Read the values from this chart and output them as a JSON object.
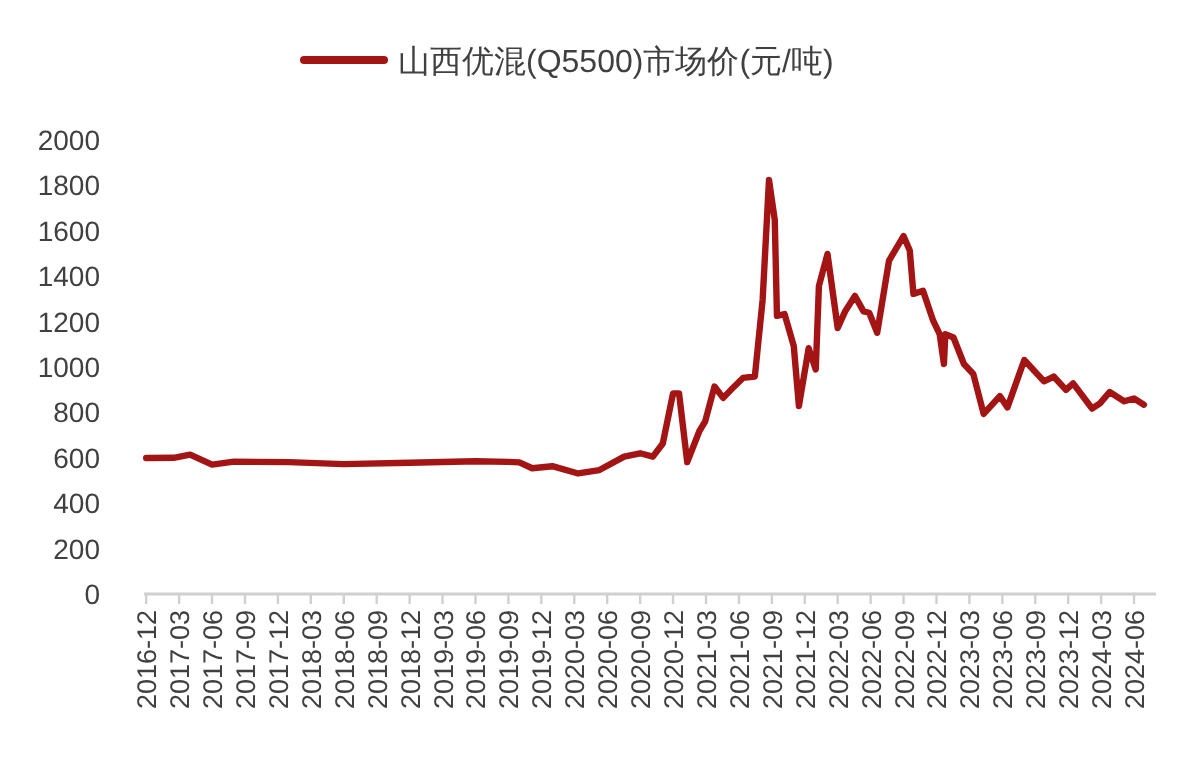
{
  "chart_data": {
    "type": "line",
    "legend": "top",
    "grid": false,
    "line_style": "solid",
    "marker": "none",
    "xlim": [
      "2016-11-25",
      "2024-08"
    ],
    "xticks": [
      "2016-12",
      "2017-03",
      "2017-06",
      "2017-09",
      "2017-12",
      "2018-03",
      "2018-06",
      "2018-09",
      "2018-12",
      "2019-03",
      "2019-06",
      "2019-09",
      "2019-12",
      "2020-03",
      "2020-06",
      "2020-09",
      "2020-12",
      "2021-03",
      "2021-06",
      "2021-09",
      "2021-12",
      "2022-03",
      "2022-06",
      "2022-09",
      "2022-12",
      "2023-03",
      "2023-06",
      "2023-09",
      "2023-12",
      "2024-03",
      "2024-06"
    ],
    "ylim": [
      0,
      2000
    ],
    "yticks": [
      0,
      200,
      400,
      600,
      800,
      1000,
      1200,
      1400,
      1600,
      1800,
      2000
    ],
    "x": [
      "2016-12-01",
      "2017-02-15",
      "2017-04-01",
      "2017-06-01",
      "2017-08-01",
      "2018-01-01",
      "2018-06-01",
      "2018-12-01",
      "2019-06-01",
      "2019-09-01",
      "2019-10-01",
      "2019-11-06",
      "2020-01-01",
      "2020-03-12",
      "2020-05-10",
      "2020-07-18",
      "2020-09-01",
      "2020-10-06",
      "2020-11-03",
      "2020-12-01",
      "2020-12-18",
      "2021-01-10",
      "2021-02-12",
      "2021-02-27",
      "2021-03-25",
      "2021-04-18",
      "2021-05-15",
      "2021-06-12",
      "2021-07-15",
      "2021-08-06",
      "2021-08-24",
      "2021-09-09",
      "2021-09-15",
      "2021-10-06",
      "2021-11-01",
      "2021-11-15",
      "2021-12-12",
      "2022-01-01",
      "2022-01-10",
      "2022-02-03",
      "2022-03-01",
      "2022-03-22",
      "2022-04-18",
      "2022-05-12",
      "2022-05-28",
      "2022-06-19",
      "2022-07-22",
      "2022-09-01",
      "2022-09-18",
      "2022-09-28",
      "2022-10-25",
      "2022-11-22",
      "2022-12-10",
      "2022-12-22",
      "2022-12-26",
      "2023-01-18",
      "2023-02-15",
      "2023-03-12",
      "2023-04-10",
      "2023-05-25",
      "2023-06-15",
      "2023-08-01",
      "2023-09-25",
      "2023-10-22",
      "2023-11-25",
      "2023-12-15",
      "2024-02-06",
      "2024-02-27",
      "2024-03-25",
      "2024-05-04",
      "2024-06-01",
      "2024-06-28"
    ],
    "series": [
      {
        "name": "山西优混(Q5500)市场价(元/吨)",
        "color": "#a31515",
        "values": [
          599,
          600,
          614,
          570,
          583,
          581,
          572,
          578,
          585,
          582,
          580,
          554,
          563,
          531,
          546,
          605,
          620,
          605,
          663,
          884,
          884,
          581,
          717,
          761,
          914,
          864,
          908,
          952,
          958,
          1295,
          1824,
          1648,
          1225,
          1233,
          1092,
          828,
          1083,
          989,
          1357,
          1498,
          1172,
          1245,
          1313,
          1245,
          1239,
          1151,
          1469,
          1577,
          1513,
          1322,
          1336,
          1204,
          1145,
          1013,
          1145,
          1130,
          1013,
          969,
          793,
          872,
          822,
          1031,
          937,
          958,
          899,
          928,
          817,
          840,
          890,
          849,
          861,
          834
        ]
      }
    ]
  }
}
